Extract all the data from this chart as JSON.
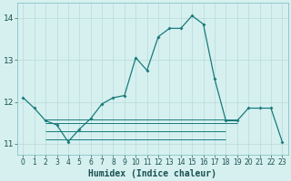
{
  "title": "",
  "xlabel": "Humidex (Indice chaleur)",
  "bg_color": "#d6f0f0",
  "grid_color": "#b8dada",
  "line_color": "#1a7a7a",
  "xlim": [
    -0.5,
    23.5
  ],
  "ylim": [
    10.75,
    14.35
  ],
  "yticks": [
    11,
    12,
    13,
    14
  ],
  "xticks": [
    0,
    1,
    2,
    3,
    4,
    5,
    6,
    7,
    8,
    9,
    10,
    11,
    12,
    13,
    14,
    15,
    16,
    17,
    18,
    19,
    20,
    21,
    22,
    23
  ],
  "main_series": [
    [
      0,
      12.1
    ],
    [
      1,
      11.85
    ],
    [
      2,
      11.55
    ],
    [
      3,
      11.45
    ],
    [
      4,
      11.05
    ],
    [
      5,
      11.35
    ],
    [
      6,
      11.6
    ],
    [
      7,
      11.95
    ],
    [
      8,
      12.1
    ],
    [
      9,
      12.15
    ],
    [
      10,
      13.05
    ],
    [
      11,
      12.75
    ],
    [
      12,
      13.55
    ],
    [
      13,
      13.75
    ],
    [
      14,
      13.75
    ],
    [
      15,
      14.05
    ],
    [
      16,
      13.85
    ],
    [
      17,
      12.55
    ],
    [
      18,
      11.55
    ],
    [
      19,
      11.55
    ],
    [
      20,
      11.85
    ],
    [
      21,
      11.85
    ],
    [
      22,
      11.85
    ],
    [
      23,
      11.05
    ]
  ],
  "flat_lines": [
    {
      "x_start": 2,
      "x_end": 19,
      "y": 11.5
    },
    {
      "x_start": 2,
      "x_end": 19,
      "y": 11.57
    },
    {
      "x_start": 2,
      "x_end": 18,
      "y": 11.3
    },
    {
      "x_start": 2,
      "x_end": 18,
      "y": 11.1
    }
  ],
  "xlabel_fontsize": 7,
  "tick_fontsize": 5.5
}
